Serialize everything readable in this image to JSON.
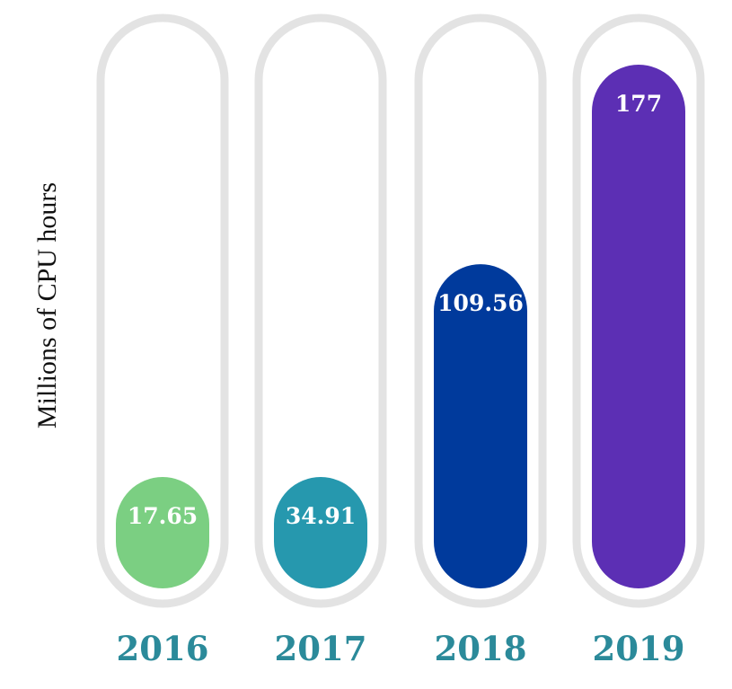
{
  "chart_data": {
    "type": "bar",
    "categories": [
      "2016",
      "2017",
      "2018",
      "2019"
    ],
    "values": [
      17.65,
      34.91,
      109.56,
      177
    ],
    "value_labels": [
      "17.65",
      "34.91",
      "109.56",
      "177"
    ],
    "ylabel": "Millions of CPU hours",
    "xlabel": "",
    "title": "",
    "grid": false,
    "colors": [
      "#7bcf82",
      "#2698ae",
      "#003a9c",
      "#5c2fb4"
    ],
    "track_color": "#e3e3e3",
    "category_color": "#2b8a9a"
  }
}
